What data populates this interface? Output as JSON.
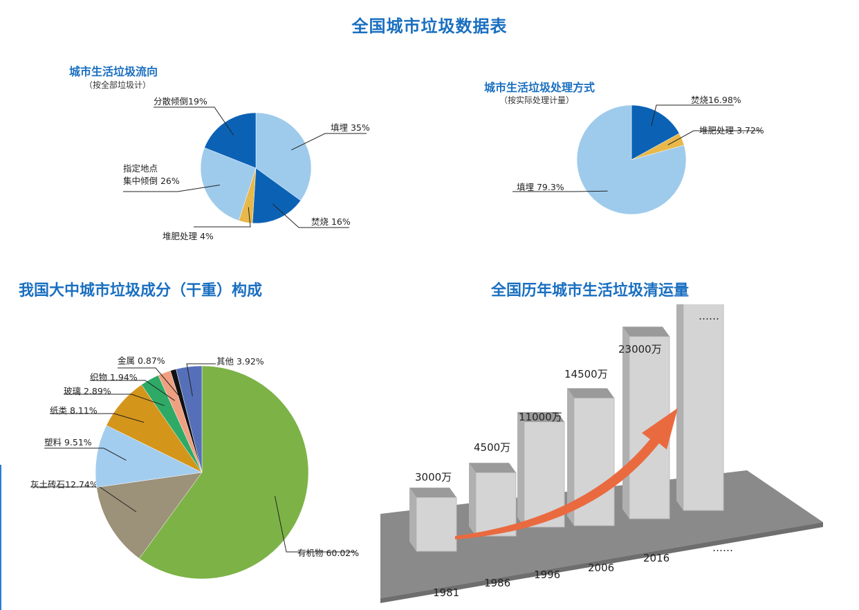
{
  "page_title": "全国城市垃圾数据表",
  "chart_data": [
    {
      "type": "pie",
      "title": "城市生活垃圾流向",
      "subtitle": "（按全部垃圾计）",
      "slices": [
        {
          "label": "填埋 35%",
          "value": 35,
          "color": "#9ecbec"
        },
        {
          "label": "焚烧 16%",
          "value": 16,
          "color": "#0b62b5"
        },
        {
          "label": "堆肥处理 4%",
          "value": 4,
          "color": "#e8b84a"
        },
        {
          "label": "指定地点\n集中倾倒 26%",
          "value": 26,
          "color": "#9ecbec"
        },
        {
          "label": "分散倾倒19%",
          "value": 19,
          "color": "#0b62b5"
        }
      ]
    },
    {
      "type": "pie",
      "title": "城市生活垃圾处理方式",
      "subtitle": "（按实际处理计量）",
      "slices": [
        {
          "label": "焚烧16.98%",
          "value": 16.98,
          "color": "#0b62b5"
        },
        {
          "label": "堆肥处理 3.72%",
          "value": 3.72,
          "color": "#e8b84a"
        },
        {
          "label": "填埋 79.3%",
          "value": 79.3,
          "color": "#9ecbec"
        }
      ]
    },
    {
      "type": "pie",
      "title": "我国大中城市垃圾成分（干重）构成",
      "slices": [
        {
          "label": "有机物 60.02%",
          "value": 60.02,
          "color": "#7db247"
        },
        {
          "label": "灰土砖石12.74%",
          "value": 12.74,
          "color": "#9c9179"
        },
        {
          "label": "塑料 9.51%",
          "value": 9.51,
          "color": "#a3cdef"
        },
        {
          "label": "纸类 8.11%",
          "value": 8.11,
          "color": "#d4951b"
        },
        {
          "label": "玻璃 2.89%",
          "value": 2.89,
          "color": "#2eaa66"
        },
        {
          "label": "织物 1.94%",
          "value": 1.94,
          "color": "#f0a080"
        },
        {
          "label": "金属 0.87%",
          "value": 0.87,
          "color": "#111111"
        },
        {
          "label": "其他 3.92%",
          "value": 3.92,
          "color": "#5570b8"
        }
      ]
    },
    {
      "type": "bar",
      "title": "全国历年城市生活垃圾清运量",
      "categories": [
        "1981",
        "1986",
        "1996",
        "2006",
        "2016",
        "……"
      ],
      "values": [
        3000,
        4500,
        11000,
        14500,
        23000,
        28000
      ],
      "value_labels": [
        "3000万",
        "4500万",
        "11000万",
        "14500万",
        "23000万",
        "……"
      ],
      "trend_color": "#ea6a40",
      "bar_color": "#cfcfcf",
      "floor_color": "#8a8a8a"
    }
  ]
}
